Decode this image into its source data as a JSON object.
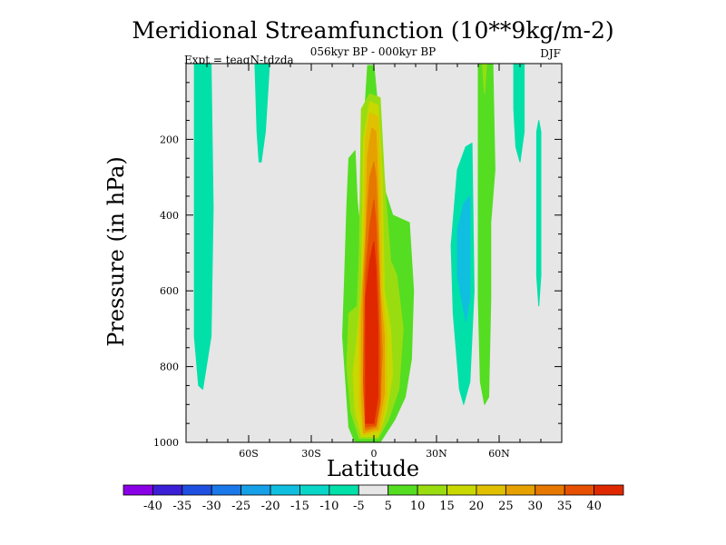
{
  "chart_data": {
    "type": "contour",
    "title": "Meridional Streamfunction (10**9kg/m-2)",
    "subtitle": "056kyr BP - 000kyr BP",
    "left_annotation": "Expt = teaqN-tdzda",
    "right_annotation": "DJF",
    "xlabel": "Latitude",
    "ylabel": "Pressure (in hPa)",
    "xlim": [
      -90,
      90
    ],
    "ylim": [
      1000,
      0
    ],
    "x_ticks": [
      -60,
      -30,
      0,
      30,
      60
    ],
    "x_tick_labels": [
      "60S",
      "30S",
      "0",
      "30N",
      "60N"
    ],
    "y_ticks": [
      200,
      400,
      600,
      800,
      1000
    ],
    "y_tick_labels": [
      "200",
      "400",
      "600",
      "800",
      "1000"
    ],
    "background_color": "#e6e6e6",
    "colorbar": {
      "levels": [
        -40,
        -35,
        -30,
        -25,
        -20,
        -15,
        -10,
        -5,
        5,
        10,
        15,
        20,
        25,
        30,
        35,
        40
      ],
      "labels": [
        "-40",
        "-35",
        "-30",
        "-25",
        "-20",
        "-15",
        "-10",
        "-5",
        "5",
        "10",
        "15",
        "20",
        "25",
        "30",
        "35",
        "40"
      ],
      "colors": [
        "#8a00e6",
        "#3a1fd6",
        "#1f4fe0",
        "#1a78e8",
        "#16a0e8",
        "#10bfe0",
        "#0ad6c8",
        "#00e0a8",
        "#e6e6e6",
        "#55dd22",
        "#99dd11",
        "#c8d800",
        "#e0c000",
        "#e6a000",
        "#e67800",
        "#e65000",
        "#e02800"
      ]
    },
    "regions": [
      {
        "name": "tropical-cell-outer",
        "color": "#55dd22",
        "points": [
          [
            -9,
            1000
          ],
          [
            -12,
            960
          ],
          [
            -13,
            880
          ],
          [
            -15,
            720
          ],
          [
            -14,
            560
          ],
          [
            -13,
            380
          ],
          [
            -12,
            250
          ],
          [
            -9,
            230
          ],
          [
            -8,
            360
          ],
          [
            -7,
            420
          ],
          [
            -5,
            180
          ],
          [
            -3,
            5
          ],
          [
            0,
            5
          ],
          [
            3,
            180
          ],
          [
            5,
            330
          ],
          [
            9,
            400
          ],
          [
            17,
            420
          ],
          [
            19,
            600
          ],
          [
            18,
            780
          ],
          [
            15,
            880
          ],
          [
            10,
            940
          ],
          [
            3,
            1000
          ]
        ]
      },
      {
        "name": "tropical-cell-10",
        "color": "#99dd11",
        "points": [
          [
            -7,
            990
          ],
          [
            -11,
            920
          ],
          [
            -13,
            800
          ],
          [
            -12,
            660
          ],
          [
            -8,
            640
          ],
          [
            -7,
            500
          ],
          [
            -6,
            120
          ],
          [
            -2,
            80
          ],
          [
            3,
            90
          ],
          [
            5,
            300
          ],
          [
            8,
            520
          ],
          [
            11,
            560
          ],
          [
            14,
            700
          ],
          [
            12,
            860
          ],
          [
            7,
            940
          ],
          [
            2,
            990
          ]
        ]
      },
      {
        "name": "tropical-cell-15",
        "color": "#c8d800",
        "points": [
          [
            -6,
            985
          ],
          [
            -9,
            920
          ],
          [
            -10,
            820
          ],
          [
            -8,
            720
          ],
          [
            -6,
            600
          ],
          [
            -5,
            200
          ],
          [
            -2,
            100
          ],
          [
            2,
            110
          ],
          [
            4,
            300
          ],
          [
            5,
            600
          ],
          [
            8,
            700
          ],
          [
            9,
            820
          ],
          [
            6,
            920
          ],
          [
            2,
            985
          ]
        ]
      },
      {
        "name": "tropical-cell-20",
        "color": "#e0c000",
        "points": [
          [
            -5,
            980
          ],
          [
            -7,
            900
          ],
          [
            -7,
            700
          ],
          [
            -5,
            500
          ],
          [
            -4,
            200
          ],
          [
            -2,
            130
          ],
          [
            2,
            140
          ],
          [
            3,
            300
          ],
          [
            4,
            600
          ],
          [
            6,
            720
          ],
          [
            6,
            880
          ],
          [
            3,
            970
          ]
        ]
      },
      {
        "name": "tropical-cell-25",
        "color": "#e6a000",
        "points": [
          [
            -5,
            975
          ],
          [
            -6,
            880
          ],
          [
            -6,
            650
          ],
          [
            -4,
            450
          ],
          [
            -3,
            240
          ],
          [
            -1,
            170
          ],
          [
            1,
            180
          ],
          [
            2,
            330
          ],
          [
            3,
            600
          ],
          [
            5,
            720
          ],
          [
            5,
            870
          ],
          [
            2,
            965
          ]
        ]
      },
      {
        "name": "tropical-cell-30",
        "color": "#e67800",
        "points": [
          [
            -4,
            968
          ],
          [
            -5,
            860
          ],
          [
            -5,
            600
          ],
          [
            -3,
            380
          ],
          [
            -2,
            300
          ],
          [
            0,
            260
          ],
          [
            1,
            300
          ],
          [
            2,
            450
          ],
          [
            3,
            620
          ],
          [
            4,
            760
          ],
          [
            3,
            900
          ],
          [
            1,
            960
          ]
        ]
      },
      {
        "name": "tropical-cell-35",
        "color": "#e65000",
        "points": [
          [
            -4,
            960
          ],
          [
            -5,
            840
          ],
          [
            -4,
            560
          ],
          [
            -2,
            430
          ],
          [
            0,
            360
          ],
          [
            1,
            420
          ],
          [
            2,
            560
          ],
          [
            3,
            760
          ],
          [
            3,
            890
          ],
          [
            1,
            955
          ]
        ]
      },
      {
        "name": "tropical-cell-40",
        "color": "#e02800",
        "points": [
          [
            -4,
            950
          ],
          [
            -4,
            820
          ],
          [
            -4,
            620
          ],
          [
            -2,
            520
          ],
          [
            0,
            470
          ],
          [
            1,
            540
          ],
          [
            2,
            700
          ],
          [
            2,
            880
          ],
          [
            0,
            950
          ]
        ]
      },
      {
        "name": "sh-cell-70s",
        "color": "#00e0a8",
        "points": [
          [
            -86,
            0
          ],
          [
            -86,
            720
          ],
          [
            -84,
            850
          ],
          [
            -82,
            860
          ],
          [
            -78,
            720
          ],
          [
            -77,
            380
          ],
          [
            -78,
            0
          ]
        ]
      },
      {
        "name": "sh-cell-52s",
        "color": "#00e0a8",
        "points": [
          [
            -57,
            0
          ],
          [
            -56,
            180
          ],
          [
            -55,
            260
          ],
          [
            -54,
            260
          ],
          [
            -52,
            180
          ],
          [
            -50,
            0
          ]
        ]
      },
      {
        "name": "nh-cell-45n-outer",
        "color": "#00e0a8",
        "points": [
          [
            38,
            660
          ],
          [
            37,
            480
          ],
          [
            40,
            280
          ],
          [
            44,
            220
          ],
          [
            47,
            210
          ],
          [
            48,
            600
          ],
          [
            46,
            840
          ],
          [
            43,
            900
          ],
          [
            41,
            860
          ]
        ]
      },
      {
        "name": "nh-cell-45n-inner",
        "color": "#10bfe0",
        "points": [
          [
            40,
            560
          ],
          [
            40,
            440
          ],
          [
            43,
            370
          ],
          [
            46,
            350
          ],
          [
            46,
            620
          ],
          [
            44,
            680
          ]
        ]
      },
      {
        "name": "nh-green-50n",
        "color": "#55dd22",
        "points": [
          [
            50,
            0
          ],
          [
            50,
            620
          ],
          [
            51,
            840
          ],
          [
            53,
            900
          ],
          [
            55,
            880
          ],
          [
            56,
            620
          ],
          [
            56,
            420
          ],
          [
            58,
            280
          ],
          [
            57,
            0
          ],
          [
            54,
            0
          ],
          [
            53,
            80
          ],
          [
            52,
            0
          ]
        ]
      },
      {
        "name": "nh-green-50n-inner",
        "color": "#99dd11",
        "points": [
          [
            52,
            0
          ],
          [
            53,
            80
          ],
          [
            54,
            0
          ]
        ]
      },
      {
        "name": "nh-cell-63n",
        "color": "#00e0a8",
        "points": [
          [
            67,
            0
          ],
          [
            67,
            120
          ],
          [
            68,
            220
          ],
          [
            70,
            260
          ],
          [
            72,
            180
          ],
          [
            72,
            0
          ]
        ]
      },
      {
        "name": "nh-thin-78n",
        "color": "#00e0a8",
        "points": [
          [
            78,
            180
          ],
          [
            78,
            560
          ],
          [
            79,
            640
          ],
          [
            80,
            560
          ],
          [
            80,
            180
          ],
          [
            79,
            150
          ]
        ]
      }
    ]
  }
}
